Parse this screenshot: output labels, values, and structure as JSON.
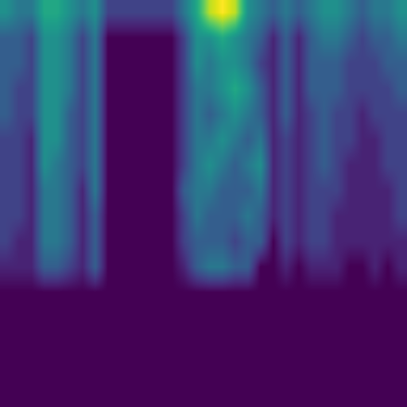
{
  "chart_data": {
    "type": "heatmap",
    "color": "viridis",
    "tick_labels": false,
    "cells": [
      [
        0.5,
        0.4,
        0.4,
        0.6,
        0.6,
        0.5,
        0.4,
        0.5,
        0.2,
        0.2,
        0.2,
        0.2,
        0.2,
        0.2,
        0.4,
        0.6,
        0.9,
        1.0,
        0.9,
        0.5,
        0.4,
        0.3,
        0.4,
        0.3,
        0.4,
        0.5,
        0.5,
        0.4,
        0.3,
        0.4,
        0.4,
        0.5
      ],
      [
        0.3,
        0.3,
        0.2,
        0.5,
        0.5,
        0.4,
        0.2,
        0.4,
        0.0,
        0.0,
        0.0,
        0.0,
        0.0,
        0.0,
        0.2,
        0.5,
        0.5,
        0.6,
        0.5,
        0.4,
        0.3,
        0.1,
        0.3,
        0.1,
        0.3,
        0.4,
        0.4,
        0.3,
        0.2,
        0.3,
        0.3,
        0.4
      ],
      [
        0.3,
        0.3,
        0.2,
        0.5,
        0.5,
        0.4,
        0.2,
        0.4,
        0.0,
        0.0,
        0.0,
        0.0,
        0.0,
        0.0,
        0.2,
        0.5,
        0.4,
        0.5,
        0.5,
        0.4,
        0.2,
        0.1,
        0.3,
        0.1,
        0.3,
        0.3,
        0.3,
        0.2,
        0.2,
        0.2,
        0.3,
        0.3
      ],
      [
        0.3,
        0.2,
        0.2,
        0.5,
        0.5,
        0.4,
        0.2,
        0.4,
        0.0,
        0.0,
        0.0,
        0.0,
        0.0,
        0.0,
        0.2,
        0.4,
        0.4,
        0.5,
        0.6,
        0.5,
        0.3,
        0.1,
        0.3,
        0.1,
        0.3,
        0.3,
        0.3,
        0.2,
        0.2,
        0.2,
        0.2,
        0.3
      ],
      [
        0.3,
        0.2,
        0.2,
        0.5,
        0.5,
        0.3,
        0.2,
        0.4,
        0.0,
        0.0,
        0.0,
        0.0,
        0.0,
        0.0,
        0.2,
        0.4,
        0.3,
        0.4,
        0.5,
        0.4,
        0.3,
        0.1,
        0.3,
        0.1,
        0.2,
        0.3,
        0.2,
        0.2,
        0.1,
        0.2,
        0.2,
        0.2
      ],
      [
        0.2,
        0.2,
        0.1,
        0.5,
        0.5,
        0.3,
        0.2,
        0.4,
        0.0,
        0.0,
        0.0,
        0.0,
        0.0,
        0.0,
        0.2,
        0.4,
        0.4,
        0.5,
        0.4,
        0.3,
        0.4,
        0.1,
        0.2,
        0.1,
        0.2,
        0.3,
        0.2,
        0.2,
        0.1,
        0.1,
        0.2,
        0.2
      ],
      [
        0.2,
        0.2,
        0.1,
        0.5,
        0.4,
        0.3,
        0.2,
        0.4,
        0.0,
        0.0,
        0.0,
        0.0,
        0.0,
        0.0,
        0.2,
        0.4,
        0.5,
        0.4,
        0.3,
        0.4,
        0.5,
        0.1,
        0.2,
        0.1,
        0.2,
        0.3,
        0.2,
        0.1,
        0.1,
        0.1,
        0.2,
        0.2
      ],
      [
        0.2,
        0.2,
        0.1,
        0.4,
        0.4,
        0.3,
        0.1,
        0.4,
        0.0,
        0.0,
        0.0,
        0.0,
        0.0,
        0.0,
        0.3,
        0.4,
        0.4,
        0.3,
        0.3,
        0.3,
        0.4,
        0.1,
        0.2,
        0.1,
        0.2,
        0.2,
        0.2,
        0.1,
        0.1,
        0.1,
        0.1,
        0.2
      ],
      [
        0.2,
        0.2,
        0.1,
        0.4,
        0.4,
        0.3,
        0.1,
        0.3,
        0.0,
        0.0,
        0.0,
        0.0,
        0.0,
        0.0,
        0.2,
        0.4,
        0.3,
        0.3,
        0.3,
        0.4,
        0.3,
        0.1,
        0.2,
        0.1,
        0.2,
        0.2,
        0.1,
        0.1,
        0.1,
        0.1,
        0.1,
        0.2
      ],
      [
        0.2,
        0.1,
        0.1,
        0.4,
        0.4,
        0.3,
        0.1,
        0.3,
        0.0,
        0.0,
        0.0,
        0.0,
        0.0,
        0.0,
        0.2,
        0.3,
        0.3,
        0.3,
        0.2,
        0.3,
        0.3,
        0.0,
        0.2,
        0.1,
        0.2,
        0.2,
        0.1,
        0.1,
        0.1,
        0.1,
        0.1,
        0.1
      ],
      [
        0.1,
        0.1,
        0.1,
        0.3,
        0.3,
        0.2,
        0.1,
        0.3,
        0.0,
        0.0,
        0.0,
        0.0,
        0.0,
        0.0,
        0.1,
        0.3,
        0.4,
        0.4,
        0.3,
        0.3,
        0.0,
        0.0,
        0.1,
        0.0,
        0.1,
        0.1,
        0.1,
        0.0,
        0.0,
        0.1,
        0.0,
        0.1
      ],
      [
        0.0,
        0.0,
        0.0,
        0.0,
        0.0,
        0.0,
        0.0,
        0.0,
        0.0,
        0.0,
        0.0,
        0.0,
        0.0,
        0.0,
        0.0,
        0.0,
        0.0,
        0.0,
        0.0,
        0.0,
        0.0,
        0.0,
        0.0,
        0.0,
        0.0,
        0.0,
        0.0,
        0.0,
        0.0,
        0.0,
        0.0,
        0.0
      ],
      [
        0.0,
        0.0,
        0.0,
        0.0,
        0.0,
        0.0,
        0.0,
        0.0,
        0.0,
        0.0,
        0.0,
        0.0,
        0.0,
        0.0,
        0.0,
        0.0,
        0.0,
        0.0,
        0.0,
        0.0,
        0.0,
        0.0,
        0.0,
        0.0,
        0.0,
        0.0,
        0.0,
        0.0,
        0.0,
        0.0,
        0.0,
        0.0
      ],
      [
        0.0,
        0.0,
        0.0,
        0.0,
        0.0,
        0.0,
        0.0,
        0.0,
        0.0,
        0.0,
        0.0,
        0.0,
        0.0,
        0.0,
        0.0,
        0.0,
        0.0,
        0.0,
        0.0,
        0.0,
        0.0,
        0.0,
        0.0,
        0.0,
        0.0,
        0.0,
        0.0,
        0.0,
        0.0,
        0.0,
        0.0,
        0.0
      ],
      [
        0.0,
        0.0,
        0.0,
        0.0,
        0.0,
        0.0,
        0.0,
        0.0,
        0.0,
        0.0,
        0.0,
        0.0,
        0.0,
        0.0,
        0.0,
        0.0,
        0.0,
        0.0,
        0.0,
        0.0,
        0.0,
        0.0,
        0.0,
        0.0,
        0.0,
        0.0,
        0.0,
        0.0,
        0.0,
        0.0,
        0.0,
        0.0
      ],
      [
        0.0,
        0.0,
        0.0,
        0.0,
        0.0,
        0.0,
        0.0,
        0.0,
        0.0,
        0.0,
        0.0,
        0.0,
        0.0,
        0.0,
        0.0,
        0.0,
        0.0,
        0.0,
        0.0,
        0.0,
        0.0,
        0.0,
        0.0,
        0.0,
        0.0,
        0.0,
        0.0,
        0.0,
        0.0,
        0.0,
        0.0,
        0.0
      ]
    ]
  }
}
